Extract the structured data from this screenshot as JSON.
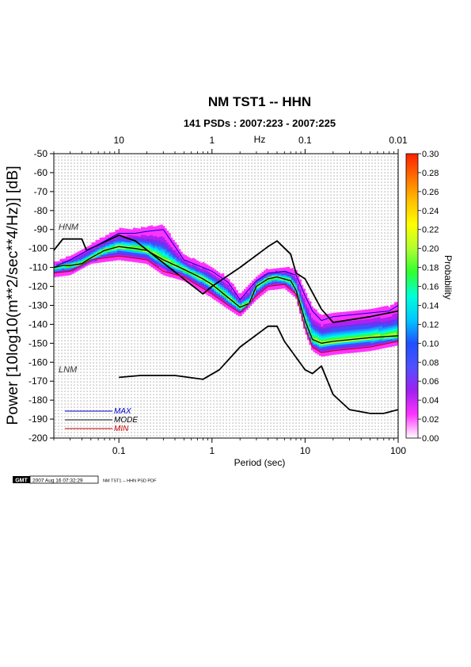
{
  "chart_data": {
    "type": "heatmap",
    "title": "NM TST1 -- HHN",
    "subtitle": "141 PSDs : 2007:223 - 2007:225",
    "xlabel": "Period (sec)",
    "ylabel": "Power [10log10(m**2/sec**4/Hz)] [dB]",
    "x_scale": "log",
    "xlim": [
      0.02,
      100
    ],
    "ylim": [
      -200,
      -50
    ],
    "x_ticks": [
      "0.1",
      "1",
      "10",
      "100"
    ],
    "x_tick_values": [
      0.1,
      1,
      10,
      100
    ],
    "y_ticks": [
      "-50",
      "-60",
      "-70",
      "-80",
      "-90",
      "-100",
      "-110",
      "-120",
      "-130",
      "-140",
      "-150",
      "-160",
      "-170",
      "-180",
      "-190",
      "-200"
    ],
    "y_tick_values": [
      -50,
      -60,
      -70,
      -80,
      -90,
      -100,
      -110,
      -120,
      -130,
      -140,
      -150,
      -160,
      -170,
      -180,
      -190,
      -200
    ],
    "top_axis_label": "Hz",
    "top_ticks": [
      "10",
      "1",
      "0.1",
      "0.01"
    ],
    "top_tick_periods": [
      0.1,
      1,
      10,
      100
    ],
    "grid": true,
    "colorbar": {
      "label": "Probability",
      "ticks": [
        "0.30",
        "0.28",
        "0.26",
        "0.24",
        "0.22",
        "0.20",
        "0.18",
        "0.16",
        "0.14",
        "0.12",
        "0.10",
        "0.08",
        "0.06",
        "0.04",
        "0.02",
        "0.00"
      ],
      "tick_values": [
        0.3,
        0.28,
        0.26,
        0.24,
        0.22,
        0.2,
        0.18,
        0.16,
        0.14,
        0.12,
        0.1,
        0.08,
        0.06,
        0.04,
        0.02,
        0.0
      ],
      "range": [
        0,
        0.3
      ],
      "colors": [
        "#ffffff",
        "#ff33ff",
        "#a020f0",
        "#5050ff",
        "#2050ff",
        "#00c8ff",
        "#00ffd8",
        "#30ff30",
        "#b0ff30",
        "#ffff00",
        "#ffc000",
        "#ff7000",
        "#ff2000"
      ]
    },
    "series": [
      {
        "name": "HNM",
        "color": "#000000",
        "x": [
          0.02,
          0.025,
          0.03,
          0.04,
          0.045,
          0.1,
          0.15,
          0.8,
          1.0,
          2.0,
          4.0,
          5.0,
          7.0,
          8.0,
          10.0,
          15.0,
          20.0,
          50.0,
          100.0
        ],
        "y": [
          -101,
          -95,
          -95,
          -95,
          -101,
          -93,
          -96,
          -124,
          -120,
          -110,
          -99,
          -96,
          -103,
          -113,
          -116,
          -132,
          -139,
          -136,
          -133
        ]
      },
      {
        "name": "LNM",
        "color": "#000000",
        "x": [
          0.1,
          0.17,
          0.4,
          0.8,
          1.2,
          2.0,
          4.0,
          5.0,
          6.0,
          10.0,
          12.0,
          15.0,
          20.0,
          30.0,
          50.0,
          70.0,
          100.0
        ],
        "y": [
          -168,
          -167,
          -167,
          -169,
          -164,
          -152,
          -141,
          -141,
          -149,
          -164,
          -166,
          -162,
          -177,
          -185,
          -187,
          -187,
          -185
        ]
      },
      {
        "name": "MAX",
        "color": "#0000cc",
        "x": [
          0.02,
          0.03,
          0.05,
          0.1,
          0.15,
          0.2,
          0.3,
          0.5,
          0.8,
          1.0,
          1.5,
          2.0,
          3.0,
          4.0,
          6.0,
          8.0,
          10.0,
          12.0,
          15.0,
          20.0,
          50.0,
          80.0,
          100.0
        ],
        "y": [
          -110,
          -106,
          -100,
          -92,
          -92,
          -91,
          -90,
          -106,
          -110,
          -112,
          -118,
          -127,
          -117,
          -113,
          -112,
          -114,
          -125,
          -133,
          -138,
          -136,
          -134,
          -133,
          -130
        ]
      },
      {
        "name": "MODE",
        "color": "#000000",
        "x": [
          0.02,
          0.025,
          0.03,
          0.04,
          0.05,
          0.07,
          0.1,
          0.15,
          0.2,
          0.3,
          0.5,
          0.8,
          1.0,
          1.5,
          2.0,
          2.5,
          3.0,
          4.0,
          5.0,
          7.0,
          8.0,
          10.0,
          12.0,
          15.0,
          20.0,
          50.0,
          100.0
        ],
        "y": [
          -110,
          -109,
          -109,
          -108,
          -105,
          -101,
          -99,
          -100,
          -101,
          -106,
          -111,
          -116,
          -119,
          -126,
          -131,
          -129,
          -120,
          -116,
          -115,
          -117,
          -122,
          -138,
          -148,
          -150,
          -149,
          -147,
          -146
        ]
      },
      {
        "name": "MIN",
        "color": "#cc0000",
        "x": [
          0.02,
          0.03,
          0.05,
          0.1,
          0.2,
          0.3,
          0.5,
          1.0,
          1.5,
          2.0,
          3.0,
          4.0,
          6.0,
          8.0,
          10.0,
          12.0,
          15.0,
          20.0,
          50.0,
          100.0
        ],
        "y": [
          -113,
          -112,
          -106,
          -104,
          -106,
          -112,
          -115,
          -124,
          -130,
          -134,
          -125,
          -120,
          -119,
          -124,
          -142,
          -152,
          -155,
          -154,
          -152,
          -149
        ]
      }
    ],
    "legend": {
      "placement": "bottom-left",
      "entries": [
        {
          "label": "MAX",
          "color": "#0000cc"
        },
        {
          "label": "MODE",
          "color": "#000000"
        },
        {
          "label": "MIN",
          "color": "#cc0000"
        }
      ]
    },
    "annotations": [
      "HNM",
      "LNM"
    ]
  },
  "footer": {
    "logo": "GMT",
    "timestamp": "2007 Aug 16 07:32:29",
    "caption": "NM TST1 -- HHN PSD PDF"
  }
}
